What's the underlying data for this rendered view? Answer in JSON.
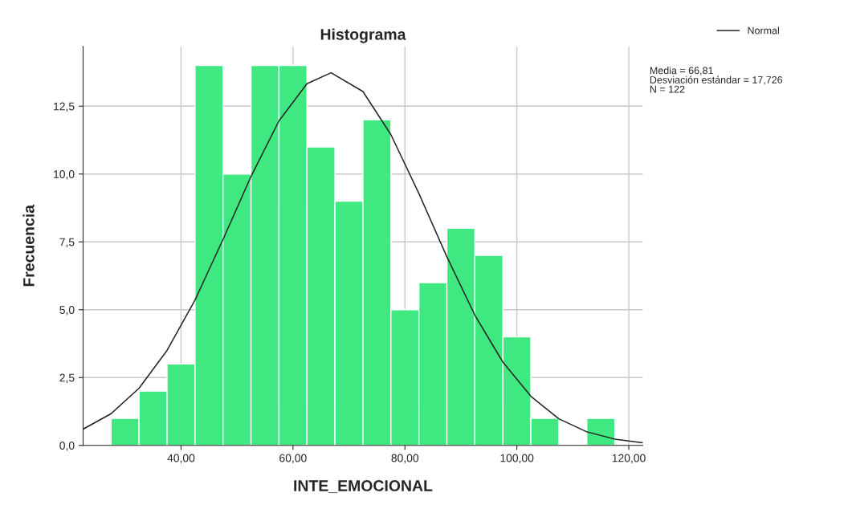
{
  "chart_data": {
    "type": "histogram",
    "title": "Histograma",
    "xlabel": "INTE_EMOCIONAL",
    "ylabel": "Frecuencia",
    "bins": [
      27.5,
      32.5,
      37.5,
      42.5,
      47.5,
      52.5,
      57.5,
      62.5,
      67.5,
      72.5,
      77.5,
      82.5,
      87.5,
      92.5,
      97.5,
      102.5,
      107.5,
      112.5,
      117.5
    ],
    "values": [
      1,
      2,
      3,
      14,
      10,
      14,
      14,
      11,
      9,
      12,
      5,
      6,
      8,
      7,
      4,
      1,
      0,
      1
    ],
    "color": "#40e882",
    "series": [
      {
        "name": "Normal",
        "type": "line",
        "color": "#222222",
        "x": [
          22.5,
          27.5,
          32.5,
          37.5,
          42.5,
          47.5,
          52.5,
          57.5,
          62.5,
          66.81,
          72.5,
          77.5,
          82.5,
          87.5,
          92.5,
          97.5,
          102.5,
          107.5,
          112.5,
          117.5,
          122.5
        ],
        "values": [
          0.6,
          1.17,
          2.11,
          3.5,
          5.36,
          7.59,
          9.91,
          11.96,
          13.33,
          13.73,
          13.04,
          11.45,
          9.28,
          6.95,
          4.8,
          3.07,
          1.81,
          0.98,
          0.5,
          0.23,
          0.1
        ]
      }
    ],
    "xlim": [
      22.5,
      122.5
    ],
    "ylim": [
      0,
      14.7
    ],
    "xticks": [
      {
        "value": 40,
        "label": "40,00"
      },
      {
        "value": 60,
        "label": "60,00"
      },
      {
        "value": 80,
        "label": "80,00"
      },
      {
        "value": 100,
        "label": "100,00"
      },
      {
        "value": 120,
        "label": "120,00"
      }
    ],
    "yticks": [
      {
        "value": 0,
        "label": "0,0"
      },
      {
        "value": 2.5,
        "label": "2,5"
      },
      {
        "value": 5,
        "label": "5,0"
      },
      {
        "value": 7.5,
        "label": "7,5"
      },
      {
        "value": 10,
        "label": "10,0"
      },
      {
        "value": 12.5,
        "label": "12,5"
      }
    ],
    "grid": true,
    "legend": "top right",
    "annotations": [
      "Media = 66,81",
      "Desviación estándar = 17,726",
      "N = 122"
    ]
  }
}
